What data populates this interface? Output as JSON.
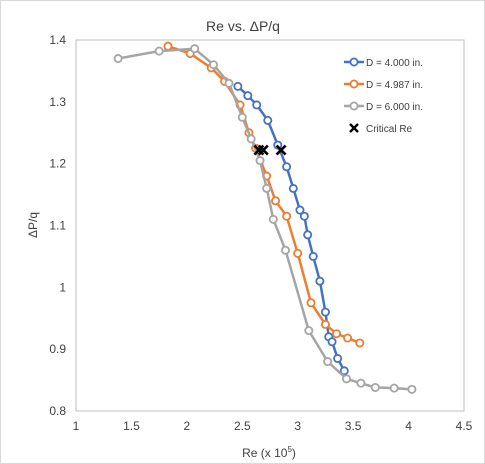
{
  "chart_data": {
    "type": "scatter",
    "title": "Re vs. ΔP/q",
    "xlabel": "Re (x 10",
    "xlabel_sup": "5",
    "xlabel_end": ")",
    "ylabel": "ΔP/q",
    "xlim": [
      1,
      4.5
    ],
    "ylim": [
      0.8,
      1.4
    ],
    "x_ticks": [
      "1",
      "1.5",
      "2",
      "2.5",
      "3",
      "3.5",
      "4",
      "4.5"
    ],
    "y_ticks": [
      "0.8",
      "0.9",
      "1",
      "1.1",
      "1.2",
      "1.3",
      "1.4"
    ],
    "x_tick_values": [
      1,
      1.5,
      2,
      2.5,
      3,
      3.5,
      4,
      4.5
    ],
    "y_tick_values": [
      0.8,
      0.9,
      1.0,
      1.1,
      1.2,
      1.3,
      1.4
    ],
    "grid": false,
    "legend_position": "top-right",
    "series": [
      {
        "name": "D = 4.000 in.",
        "color": "#4472c4",
        "style": "line-marker",
        "points": [
          [
            2.46,
            1.325
          ],
          [
            2.55,
            1.31
          ],
          [
            2.63,
            1.295
          ],
          [
            2.73,
            1.27
          ],
          [
            2.82,
            1.23
          ],
          [
            2.9,
            1.195
          ],
          [
            2.96,
            1.16
          ],
          [
            3.02,
            1.125
          ],
          [
            3.06,
            1.115
          ],
          [
            3.09,
            1.085
          ],
          [
            3.14,
            1.05
          ],
          [
            3.2,
            1.01
          ],
          [
            3.25,
            0.96
          ],
          [
            3.28,
            0.92
          ],
          [
            3.31,
            0.912
          ],
          [
            3.36,
            0.885
          ],
          [
            3.42,
            0.865
          ]
        ]
      },
      {
        "name": "D = 4.987 in.",
        "color": "#ed7d31",
        "style": "line-marker",
        "points": [
          [
            1.83,
            1.39
          ],
          [
            2.03,
            1.378
          ],
          [
            2.22,
            1.355
          ],
          [
            2.34,
            1.333
          ],
          [
            2.48,
            1.295
          ],
          [
            2.56,
            1.25
          ],
          [
            2.62,
            1.225
          ],
          [
            2.72,
            1.18
          ],
          [
            2.8,
            1.14
          ],
          [
            2.9,
            1.115
          ],
          [
            3.0,
            1.055
          ],
          [
            3.12,
            0.975
          ],
          [
            3.25,
            0.94
          ],
          [
            3.35,
            0.925
          ],
          [
            3.45,
            0.918
          ],
          [
            3.56,
            0.91
          ]
        ]
      },
      {
        "name": "D = 6.000 in.",
        "color": "#a5a5a5",
        "style": "line-marker",
        "points": [
          [
            1.38,
            1.37
          ],
          [
            1.75,
            1.382
          ],
          [
            2.07,
            1.386
          ],
          [
            2.24,
            1.36
          ],
          [
            2.38,
            1.33
          ],
          [
            2.5,
            1.275
          ],
          [
            2.58,
            1.24
          ],
          [
            2.66,
            1.205
          ],
          [
            2.72,
            1.16
          ],
          [
            2.78,
            1.11
          ],
          [
            2.89,
            1.06
          ],
          [
            3.1,
            0.93
          ],
          [
            3.27,
            0.88
          ],
          [
            3.44,
            0.852
          ],
          [
            3.57,
            0.845
          ],
          [
            3.7,
            0.838
          ],
          [
            3.87,
            0.837
          ],
          [
            4.03,
            0.835
          ]
        ]
      },
      {
        "name": "Critical Re",
        "color": "#000000",
        "style": "x-marker",
        "points": [
          [
            2.65,
            1.222
          ],
          [
            2.69,
            1.222
          ],
          [
            2.85,
            1.222
          ]
        ]
      }
    ]
  }
}
